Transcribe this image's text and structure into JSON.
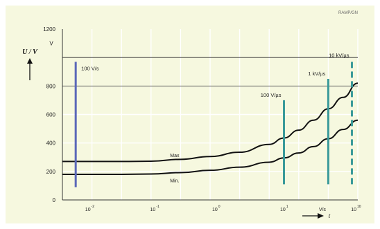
{
  "chart_data": {
    "type": "line",
    "figure_code": "RAMP/GN",
    "xlim": [
      0,
      10
    ],
    "ylim": [
      0,
      1200
    ],
    "x_ticks": [
      {
        "x": 1,
        "base": "10",
        "exp": "-2"
      },
      {
        "x": 3.2,
        "base": "10",
        "exp": "-1"
      },
      {
        "x": 5.3,
        "base": "10",
        "exp": "0"
      },
      {
        "x": 7.6,
        "base": "10",
        "exp": "1"
      },
      {
        "x": 10,
        "base": "10",
        "exp": "10"
      }
    ],
    "x_unit_label": "V/s",
    "x_unit_pos": 8.8,
    "y_ticks": [
      0,
      200,
      400,
      600,
      800,
      1200
    ],
    "y_unit": "V",
    "ylabel": "U / V",
    "xlabel": "t",
    "reference_line": 1000,
    "series": [
      {
        "name": "Max",
        "x": [
          0,
          1,
          2,
          3,
          4,
          5,
          6,
          7,
          7.5,
          8,
          8.5,
          9,
          9.5,
          10
        ],
        "y": [
          270,
          270,
          270,
          272,
          285,
          305,
          335,
          390,
          435,
          490,
          560,
          640,
          720,
          820
        ]
      },
      {
        "name": "Min.",
        "x": [
          0,
          1,
          2,
          3,
          4,
          5,
          6,
          7,
          7.5,
          8,
          8.5,
          9,
          9.5,
          10
        ],
        "y": [
          180,
          180,
          180,
          182,
          192,
          208,
          230,
          265,
          295,
          330,
          375,
          430,
          495,
          560
        ]
      }
    ],
    "markers": [
      {
        "label": "100 V/s",
        "x": 0.45,
        "y0": 90,
        "y1": 970,
        "color": "#5b68b8",
        "dashed": false
      },
      {
        "label": "100 V/µs",
        "x": 7.5,
        "y0": 110,
        "y1": 700,
        "color": "#3a9a9a",
        "dashed": false
      },
      {
        "label": "1 kV/µs",
        "x": 9.0,
        "y0": 110,
        "y1": 850,
        "color": "#3a9a9a",
        "dashed": false
      },
      {
        "label": "10 kV/µs",
        "x": 9.8,
        "y0": 110,
        "y1": 980,
        "color": "#3a9a9a",
        "dashed": true
      }
    ],
    "colors": {
      "background": "#f6f8df",
      "grid": "#ffffff",
      "axis": "#333333",
      "curve": "#111111"
    }
  }
}
